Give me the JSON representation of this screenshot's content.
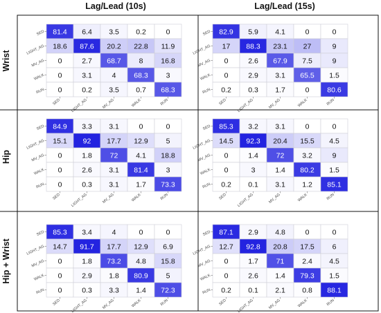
{
  "column_titles": [
    "Lag/Lead (10s)",
    "Lag/Lead (15s)"
  ],
  "row_titles": [
    "Wrist",
    "Hip",
    "Hip + Wrist"
  ],
  "colors": {
    "high": "#2323e0",
    "low": "#ffffff",
    "grid": "#cfcfd8",
    "frame": "#111111"
  },
  "chart_data": [
    {
      "type": "heatmap",
      "title": "Lag/Lead (10s)",
      "row": "Wrist",
      "x_labels": [
        "SED",
        "LIGHT_AG",
        "MV_AG",
        "WALK",
        "RUN"
      ],
      "y_labels": [
        "SED",
        "LIGHT_AG",
        "MV_AG",
        "WALK",
        "RUN"
      ],
      "values": [
        [
          "81.4",
          "6.4",
          "3.5",
          "0.2",
          "0"
        ],
        [
          "18.6",
          "87.6",
          "20.2",
          "22.8",
          "11.9"
        ],
        [
          "0",
          "2.7",
          "68.7",
          "8",
          "16.8"
        ],
        [
          "0",
          "3.1",
          "4",
          "68.3",
          "3"
        ],
        [
          "0",
          "0.2",
          "3.5",
          "0.7",
          "68.3"
        ]
      ]
    },
    {
      "type": "heatmap",
      "title": "Lag/Lead (15s)",
      "row": "Wrist",
      "x_labels": [
        "SED",
        "LIGHT_AG",
        "MV_AG",
        "WALK",
        "RUN"
      ],
      "y_labels": [
        "SED",
        "LIGHT_AG",
        "MV_AG",
        "WALK",
        "RUN"
      ],
      "values": [
        [
          "82.9",
          "5.9",
          "4.1",
          "0",
          "0"
        ],
        [
          "17",
          "88.3",
          "23.1",
          "27",
          "9"
        ],
        [
          "0",
          "2.6",
          "67.9",
          "7.5",
          "9"
        ],
        [
          "0",
          "2.9",
          "3.1",
          "65.5",
          "1.5"
        ],
        [
          "0.2",
          "0.3",
          "1.7",
          "0",
          "80.6"
        ]
      ]
    },
    {
      "type": "heatmap",
      "title": "Lag/Lead (10s)",
      "row": "Hip",
      "x_labels": [
        "SED",
        "LIGHT_AG",
        "MV_AG",
        "WALK",
        "RUN"
      ],
      "y_labels": [
        "SED",
        "LIGHT_AG",
        "MV_AG",
        "WALK",
        "RUN"
      ],
      "values": [
        [
          "84.9",
          "3.3",
          "3.1",
          "0",
          "0"
        ],
        [
          "15.1",
          "92",
          "17.7",
          "12.9",
          "5"
        ],
        [
          "0",
          "1.8",
          "72",
          "4.1",
          "18.8"
        ],
        [
          "0",
          "2.6",
          "3.1",
          "81.4",
          "3"
        ],
        [
          "0",
          "0.3",
          "3.1",
          "1.7",
          "73.3"
        ]
      ]
    },
    {
      "type": "heatmap",
      "title": "Lag/Lead (15s)",
      "row": "Hip",
      "x_labels": [
        "SED",
        "LIGHT_AG",
        "MV_AG",
        "WALK",
        "RUN"
      ],
      "y_labels": [
        "SED",
        "LIGHT_AG",
        "MV_AG",
        "WALK",
        "RUN"
      ],
      "values": [
        [
          "85.3",
          "3.2",
          "3.1",
          "0",
          "0"
        ],
        [
          "14.5",
          "92.3",
          "20.4",
          "15.5",
          "4.5"
        ],
        [
          "0",
          "1.4",
          "72",
          "3.2",
          "9"
        ],
        [
          "0",
          "3",
          "1.4",
          "80.2",
          "1.5"
        ],
        [
          "0.2",
          "0.1",
          "3.1",
          "1.2",
          "85.1"
        ]
      ]
    },
    {
      "type": "heatmap",
      "title": "Lag/Lead (10s)",
      "row": "Hip + Wrist",
      "x_labels": [
        "SED",
        "LIGHT_AG",
        "MV_AG",
        "WALK",
        "RUN"
      ],
      "y_labels": [
        "SED",
        "LIGHT_AG",
        "MV_AG",
        "WALK",
        "RUN"
      ],
      "values": [
        [
          "85.3",
          "3.4",
          "4",
          "0",
          "0"
        ],
        [
          "14.7",
          "91.7",
          "17.7",
          "12.9",
          "6.9"
        ],
        [
          "0",
          "1.8",
          "73.2",
          "4.8",
          "15.8"
        ],
        [
          "0",
          "2.9",
          "1.8",
          "80.9",
          "5"
        ],
        [
          "0",
          "0.3",
          "3.3",
          "1.4",
          "72.3"
        ]
      ]
    },
    {
      "type": "heatmap",
      "title": "Lag/Lead (15s)",
      "row": "Hip + Wrist",
      "x_labels": [
        "SED",
        "LIGHT_AG",
        "MV_AG",
        "WALK",
        "RUN"
      ],
      "y_labels": [
        "SED",
        "LIGHT_AG",
        "MV_AG",
        "WALK",
        "RUN"
      ],
      "values": [
        [
          "87.1",
          "2.9",
          "4.8",
          "0",
          "0"
        ],
        [
          "12.7",
          "92.8",
          "20.8",
          "17.5",
          "6"
        ],
        [
          "0",
          "1.7",
          "71",
          "2.4",
          "4.5"
        ],
        [
          "0",
          "2.6",
          "1.4",
          "79.3",
          "1.5"
        ],
        [
          "0.2",
          "0.1",
          "2.1",
          "0.8",
          "88.1"
        ]
      ]
    }
  ]
}
